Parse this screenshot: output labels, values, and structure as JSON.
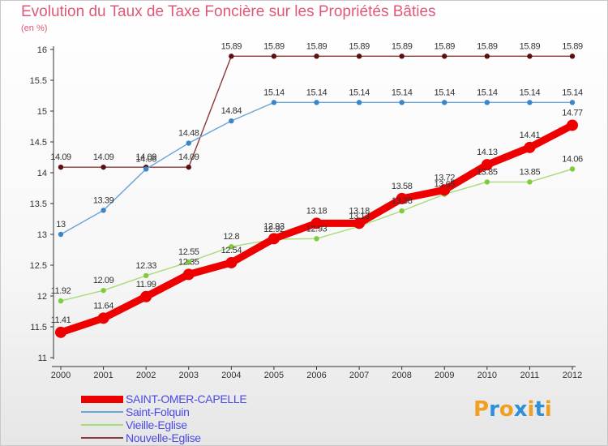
{
  "title": "Evolution du Taux de Taxe Foncière sur les Propriétés Bâties",
  "subtitle": "(en %)",
  "logo": {
    "chars": [
      "P",
      "r",
      "o",
      "x",
      "i",
      "t",
      "i"
    ],
    "colors": [
      "#f0a020",
      "#2f8fd8",
      "#f0a020",
      "#2f8fd8",
      "#f0a020",
      "#2f8fd8",
      "#f0a020"
    ]
  },
  "chart_data": {
    "type": "line",
    "title": "Evolution du Taux de Taxe Foncière sur les Propriétés Bâties",
    "ylabel": "(en %)",
    "x": [
      "2000",
      "2001",
      "2002",
      "2003",
      "2004",
      "2005",
      "2006",
      "2007",
      "2008",
      "2009",
      "2010",
      "2011",
      "2012"
    ],
    "ylim": [
      11,
      16
    ],
    "yticks": [
      "11",
      "11.5",
      "12",
      "12.5",
      "13",
      "13.5",
      "14",
      "14.5",
      "15",
      "15.5",
      "16"
    ],
    "grid": false,
    "legend_position": "bottom-left",
    "series": [
      {
        "name": "SAINT-OMER-CAPELLE",
        "color": "#ee0000",
        "marker": "#ee0000",
        "values": [
          11.41,
          11.64,
          11.99,
          12.35,
          12.54,
          12.93,
          13.18,
          13.18,
          13.58,
          13.72,
          14.13,
          14.41,
          14.77
        ],
        "labels": [
          "11.41",
          "11.64",
          "11.99",
          "12.35",
          "12.54",
          "12.93",
          "13.18",
          "13.18",
          "13.58",
          "13.72",
          "14.13",
          "14.41",
          "14.77"
        ]
      },
      {
        "name": "Saint-Folquin",
        "color": "#6aa4d8",
        "marker": "#3b86c7",
        "values": [
          13,
          13.39,
          14.06,
          14.48,
          14.84,
          15.14,
          15.14,
          15.14,
          15.14,
          15.14,
          15.14,
          15.14,
          15.14
        ],
        "labels": [
          "13",
          "13.39",
          "14.06",
          "14.48",
          "14.84",
          "15.14",
          "15.14",
          "15.14",
          "15.14",
          "15.14",
          "15.14",
          "15.14",
          "15.14"
        ]
      },
      {
        "name": "Vieille-Eglise",
        "color": "#a8dc78",
        "marker": "#7fcc3a",
        "values": [
          11.92,
          12.09,
          12.33,
          12.55,
          12.8,
          12.92,
          12.93,
          13.13,
          13.38,
          13.65,
          13.85,
          13.85,
          14.06
        ],
        "labels": [
          "11.92",
          "12.09",
          "12.33",
          "12.55",
          "12.8",
          "12.92",
          "12.93",
          "13.13",
          "13.38",
          "13.65",
          "13.85",
          "13.85",
          "14.06"
        ]
      },
      {
        "name": "Nouvelle-Eglise",
        "color": "#8a3a3a",
        "marker": "#5a1010",
        "values": [
          14.09,
          14.09,
          14.09,
          14.09,
          15.89,
          15.89,
          15.89,
          15.89,
          15.89,
          15.89,
          15.89,
          15.89,
          15.89
        ],
        "labels": [
          "14.09",
          "14.09",
          "14.09",
          "14.09",
          "15.89",
          "15.89",
          "15.89",
          "15.89",
          "15.89",
          "15.89",
          "15.89",
          "15.89",
          "15.89"
        ]
      }
    ]
  }
}
